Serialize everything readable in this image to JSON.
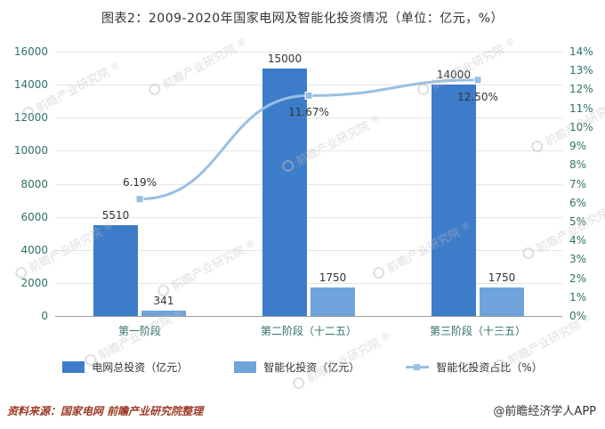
{
  "chart_data": {
    "type": "bar+line",
    "title": "图表2：2009-2020年国家电网及智能化投资情况（单位：亿元，%）",
    "categories": [
      "第一阶段",
      "第二阶段（十二五）",
      "第三阶段（十三五）"
    ],
    "bar_series": [
      {
        "name": "电网总投资（亿元）",
        "color": "#3d7cc9",
        "values": [
          5510,
          15000,
          14000
        ]
      },
      {
        "name": "智能化投资（亿元）",
        "color": "#6ea3db",
        "values": [
          341,
          1750,
          1750
        ]
      }
    ],
    "line_series": {
      "name": "智能化投资占比（%）",
      "color": "#9abfe4",
      "values": [
        6.19,
        11.67,
        12.5
      ],
      "label_pos": [
        "above",
        "below",
        "below"
      ]
    },
    "left_axis": {
      "min": 0,
      "max": 16000,
      "step": 2000
    },
    "right_axis": {
      "min": 0,
      "max": 14,
      "step": 1,
      "suffix": "%"
    },
    "grid": true,
    "legend_position": "bottom"
  },
  "watermark": {
    "text": "前瞻产业研究院",
    "mark": "®"
  },
  "footer": {
    "source": "资料来源：国家电网  前瞻产业研究院整理",
    "credit": "@前瞻经济学人APP"
  }
}
